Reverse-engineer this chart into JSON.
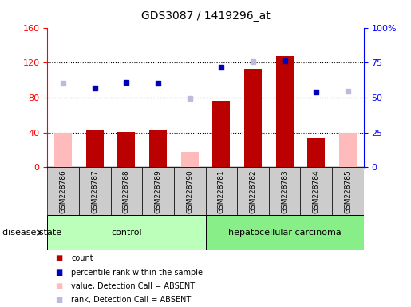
{
  "title": "GDS3087 / 1419296_at",
  "samples": [
    "GSM228786",
    "GSM228787",
    "GSM228788",
    "GSM228789",
    "GSM228790",
    "GSM228781",
    "GSM228782",
    "GSM228783",
    "GSM228784",
    "GSM228785"
  ],
  "count_values": [
    null,
    43,
    41,
    42,
    null,
    76,
    113,
    128,
    33,
    null
  ],
  "count_absent_values": [
    40,
    null,
    null,
    null,
    18,
    null,
    null,
    null,
    null,
    40
  ],
  "percentile_rank_values": [
    null,
    91,
    97,
    96,
    null,
    115,
    null,
    122,
    86,
    null
  ],
  "percentile_rank_absent_values": [
    96,
    null,
    null,
    null,
    79,
    null,
    121,
    null,
    null,
    87
  ],
  "left_ylim": [
    0,
    160
  ],
  "right_ylim": [
    0,
    100
  ],
  "left_yticks": [
    0,
    40,
    80,
    120,
    160
  ],
  "right_yticks": [
    0,
    25,
    50,
    75,
    100
  ],
  "right_yticklabels": [
    "0",
    "25",
    "50",
    "75",
    "100%"
  ],
  "color_count": "#bb0000",
  "color_count_absent": "#ffbbbb",
  "color_rank": "#0000bb",
  "color_rank_absent": "#bbbbdd",
  "bar_width": 0.55,
  "control_group_color": "#bbffbb",
  "carcinoma_group_color": "#88ee88",
  "sample_bg_color": "#cccccc",
  "hgrid_dotted": [
    40,
    80,
    120
  ],
  "control_indices": [
    0,
    1,
    2,
    3,
    4
  ],
  "carcinoma_indices": [
    5,
    6,
    7,
    8,
    9
  ]
}
